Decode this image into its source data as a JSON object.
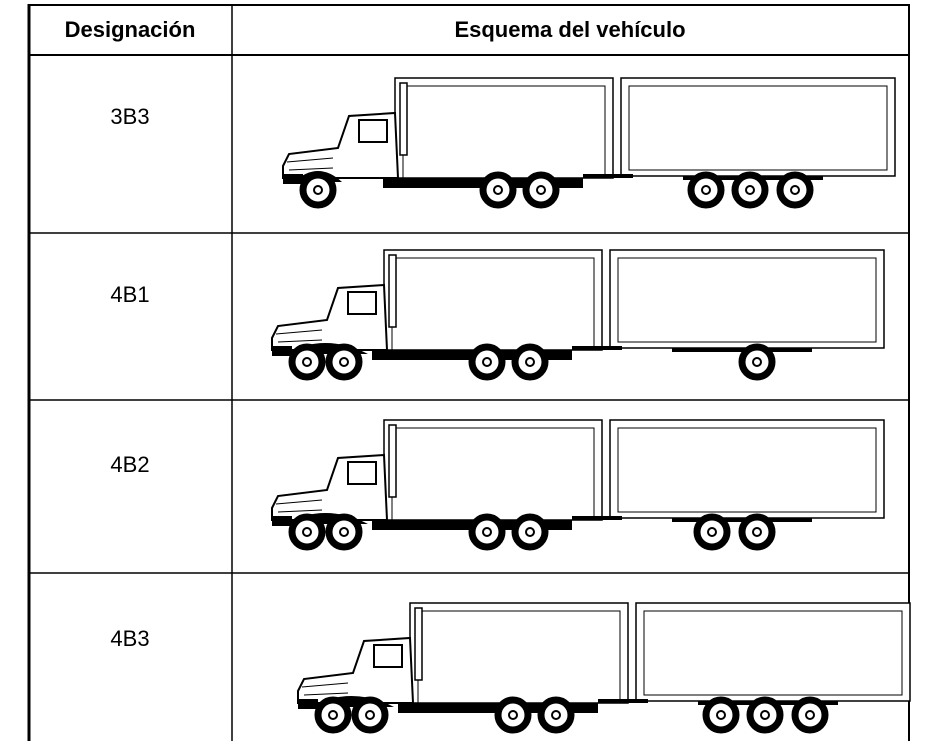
{
  "table": {
    "headers": [
      "Designación",
      "Esquema del vehículo"
    ],
    "rows": [
      [
        "3B3"
      ],
      [
        "4B1"
      ],
      [
        "4B2"
      ],
      [
        "4B3"
      ]
    ]
  }
}
